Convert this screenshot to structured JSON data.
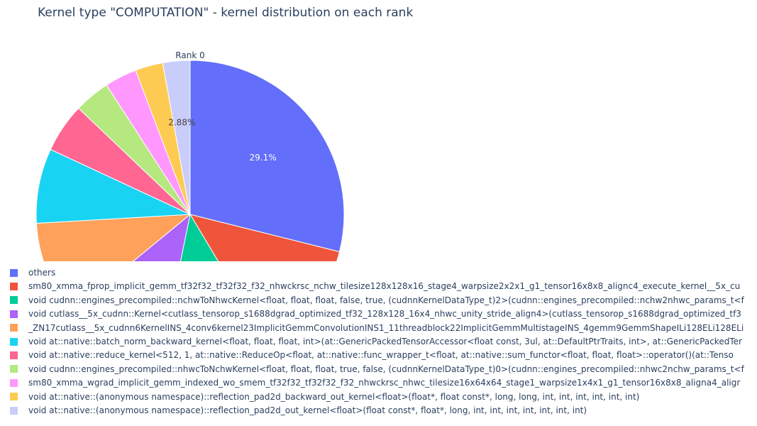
{
  "title": "Kernel type \"COMPUTATION\" - kernel distribution on each rank",
  "chart_data": {
    "type": "pie",
    "subplot_title": "Rank 0",
    "slices": [
      {
        "label": "others",
        "value": 29.1,
        "color": "#636efa",
        "text": "29.1%"
      },
      {
        "label": "sm80_xmma_fprop_implicit_gemm_tf32f32_tf32f32_f32_nhwckrsc_nchw_tilesize128x128x16_stage4_warpsize2x2x1_g1_tensor16x8x8_alignc4_execute_kernel__5x_cu",
        "value": 12.6,
        "color": "#ef553b",
        "text": "12.6%"
      },
      {
        "label": "void cudnn::engines_precompiled::nchwToNhwcKernel<float, float, float, false, true, (cudnnKernelDataType_t)2>(cudnn::engines_precompiled::nchw2nhwc_params_t<f",
        "value": 11.9,
        "color": "#00cc96",
        "text": "11.9%"
      },
      {
        "label": "void cutlass__5x_cudnn::Kernel<cutlass_tensorop_s1688dgrad_optimized_tf32_128x128_16x4_nhwc_unity_stride_align4>(cutlass_tensorop_s1688dgrad_optimized_tf3",
        "value": 10.9,
        "color": "#ab63fa",
        "text": "10.9%"
      },
      {
        "label": "_ZN17cutlass__5x_cudnn6KernelINS_4conv6kernel23ImplicitGemmConvolutionINS1_11threadblock22ImplicitGemmMultistageINS_4gemm9GemmShapeILi128ELi128ELi",
        "value": 10.1,
        "color": "#ffa15a",
        "text": ""
      },
      {
        "label": "void at::native::batch_norm_backward_kernel<float, float, float, int>(at::GenericPackedTensorAccessor<float const, 3ul, at::DefaultPtrTraits, int>, at::GenericPackedTer",
        "value": 7.9,
        "color": "#19d3f3",
        "text": ""
      },
      {
        "label": "void at::native::reduce_kernel<512, 1, at::native::ReduceOp<float, at::native::func_wrapper_t<float, at::native::sum_functor<float, float, float>::operator()(at::Tenso",
        "value": 5.2,
        "color": "#ff6692",
        "text": ""
      },
      {
        "label": "void cudnn::engines_precompiled::nhwcToNchwKernel<float, float, float, true, false, (cudnnKernelDataType_t)0>(cudnn::engines_precompiled::nhwc2nchw_params_t<f",
        "value": 3.8,
        "color": "#b6e880",
        "text": ""
      },
      {
        "label": "sm80_xmma_wgrad_implicit_gemm_indexed_wo_smem_tf32f32_tf32f32_f32_nhwckrsc_nhwc_tilesize16x64x64_stage1_warpsize1x4x1_g1_tensor16x8x8_aligna4_aligr",
        "value": 3.4,
        "color": "#ff97ff",
        "text": ""
      },
      {
        "label": "void at::native::(anonymous namespace)::reflection_pad2d_backward_out_kernel<float>(float*, float const*, long, long, int, int, int, int, int, int)",
        "value": 2.92,
        "color": "#fecb52",
        "text": ""
      },
      {
        "label": "void at::native::(anonymous namespace)::reflection_pad2d_out_kernel<float>(float const*, float*, long, int, int, int, int, int, int, int)",
        "value": 2.88,
        "color": "#c9cdfb",
        "text": "2.88%"
      }
    ],
    "legend_position": "bottom-left"
  }
}
